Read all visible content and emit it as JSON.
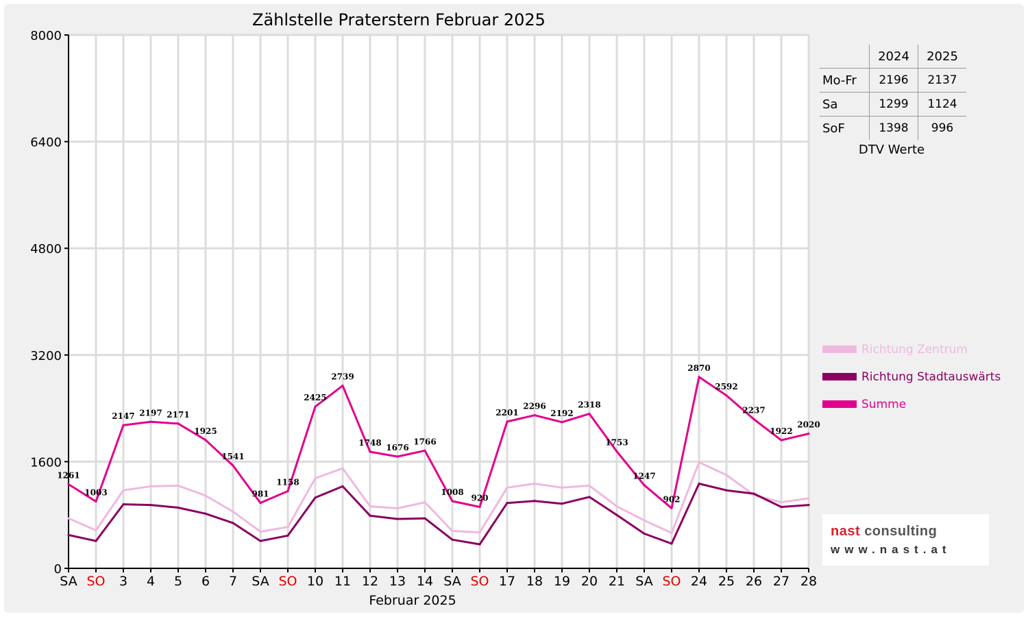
{
  "chart_data": {
    "type": "line",
    "title": "Zählstelle Praterstern Februar 2025",
    "xlabel": "Februar 2025",
    "ylabel": "",
    "ylim": [
      0,
      8000
    ],
    "yticks": [
      0,
      1600,
      3200,
      4800,
      6400,
      8000
    ],
    "grid": true,
    "legend_position": "right",
    "categories": [
      "SA",
      "SO",
      "3",
      "4",
      "5",
      "6",
      "7",
      "SA",
      "SO",
      "10",
      "11",
      "12",
      "13",
      "14",
      "SA",
      "SO",
      "17",
      "18",
      "19",
      "20",
      "21",
      "SA",
      "SO",
      "24",
      "25",
      "26",
      "27",
      "28"
    ],
    "weekend_categories": [
      "SO"
    ],
    "series": [
      {
        "name": "Richtung Zentrum",
        "color": "#f0b8e0",
        "values": [
          750,
          570,
          1170,
          1230,
          1240,
          1090,
          850,
          550,
          620,
          1350,
          1500,
          930,
          900,
          990,
          560,
          540,
          1210,
          1270,
          1210,
          1240,
          930,
          720,
          530,
          1590,
          1400,
          1100,
          990,
          1050
        ]
      },
      {
        "name": "Richtung Stadtauswärts",
        "color": "#8b0060",
        "values": [
          500,
          410,
          960,
          950,
          910,
          820,
          680,
          410,
          490,
          1060,
          1230,
          790,
          740,
          750,
          430,
          360,
          980,
          1010,
          970,
          1070,
          800,
          520,
          370,
          1270,
          1170,
          1120,
          920,
          950
        ]
      },
      {
        "name": "Summe",
        "color": "#e2008e",
        "values": [
          1261,
          1003,
          2147,
          2197,
          2171,
          1925,
          1541,
          981,
          1158,
          2425,
          2739,
          1748,
          1676,
          1766,
          1008,
          920,
          2201,
          2296,
          2192,
          2318,
          1753,
          1247,
          902,
          2870,
          2592,
          2237,
          1922,
          2020
        ],
        "labels": [
          "1261",
          "1003",
          "2147",
          "2197",
          "2171",
          "1925",
          "1541",
          "981",
          "1158",
          "2425",
          "2739",
          "1748",
          "1676",
          "1766",
          "1008",
          "920",
          "2201",
          "2296",
          "2192",
          "2318",
          "1753",
          "1247",
          "902",
          "2870",
          "2592",
          "2237",
          "1922",
          "2020"
        ]
      }
    ]
  },
  "dtv_table": {
    "caption": "DTV Werte",
    "col_2024": "2024",
    "col_2025": "2025",
    "rows": [
      {
        "label": "Mo-Fr",
        "v2024": "2196",
        "v2025": "2137"
      },
      {
        "label": "Sa",
        "v2024": "1299",
        "v2025": "1124"
      },
      {
        "label": "SoF",
        "v2024": "1398",
        "v2025": "996"
      }
    ]
  },
  "logo": {
    "word1": "nast",
    "word2": "consulting",
    "url": "www.nast.at"
  }
}
